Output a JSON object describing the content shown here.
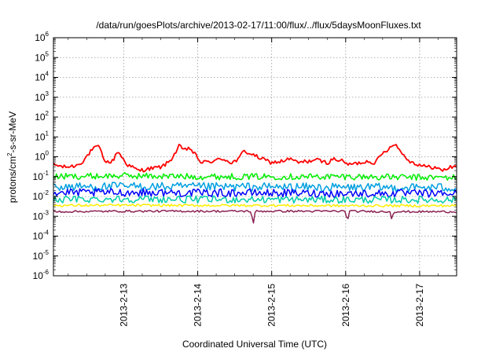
{
  "chart_data": {
    "type": "line",
    "title": "/data/run/goesPlots/archive/2013-02-17/11:00/flux/../flux/5daysMoonFluxes.txt",
    "xlabel": "Coordinated Universal Time (UTC)",
    "ylabel_parts": [
      "protons/cm",
      "2",
      "-s-sr-MeV"
    ],
    "y_scale": "log",
    "ylim": [
      1e-06,
      1000000.0
    ],
    "y_ticks": [
      {
        "base": "10",
        "exp": "-6"
      },
      {
        "base": "10",
        "exp": "-5"
      },
      {
        "base": "10",
        "exp": "-4"
      },
      {
        "base": "10",
        "exp": "-3"
      },
      {
        "base": "10",
        "exp": "-2"
      },
      {
        "base": "10",
        "exp": "-1"
      },
      {
        "base": "10",
        "exp": "0"
      },
      {
        "base": "10",
        "exp": "1"
      },
      {
        "base": "10",
        "exp": "2"
      },
      {
        "base": "10",
        "exp": "3"
      },
      {
        "base": "10",
        "exp": "4"
      },
      {
        "base": "10",
        "exp": "5"
      },
      {
        "base": "10",
        "exp": "6"
      }
    ],
    "xlim_days": [
      12.05,
      17.5
    ],
    "x_ticks": [
      {
        "day": 13,
        "label": "2013-2-13"
      },
      {
        "day": 14,
        "label": "2013-2-14"
      },
      {
        "day": 15,
        "label": "2013-2-15"
      },
      {
        "day": 16,
        "label": "2013-2-16"
      },
      {
        "day": 17,
        "label": "2013-2-17"
      }
    ],
    "grid": true,
    "series": [
      {
        "color": "#ff0000",
        "noise": 0.1,
        "points": [
          [
            12.05,
            0.4
          ],
          [
            12.2,
            0.3
          ],
          [
            12.35,
            0.35
          ],
          [
            12.45,
            0.6
          ],
          [
            12.55,
            1.8
          ],
          [
            12.62,
            3.0
          ],
          [
            12.68,
            3.0
          ],
          [
            12.72,
            0.8
          ],
          [
            12.8,
            0.5
          ],
          [
            12.85,
            0.6
          ],
          [
            12.92,
            2.0
          ],
          [
            12.97,
            1.0
          ],
          [
            13.05,
            0.4
          ],
          [
            13.2,
            0.2
          ],
          [
            13.35,
            0.25
          ],
          [
            13.5,
            0.3
          ],
          [
            13.6,
            0.5
          ],
          [
            13.68,
            1.2
          ],
          [
            13.75,
            3.5
          ],
          [
            13.82,
            2.0
          ],
          [
            13.88,
            3.0
          ],
          [
            13.95,
            1.5
          ],
          [
            14.05,
            0.5
          ],
          [
            14.2,
            0.6
          ],
          [
            14.35,
            0.8
          ],
          [
            14.45,
            0.5
          ],
          [
            14.55,
            0.7
          ],
          [
            14.62,
            2.0
          ],
          [
            14.7,
            1.5
          ],
          [
            14.8,
            1.0
          ],
          [
            14.9,
            0.7
          ],
          [
            15.0,
            0.5
          ],
          [
            15.15,
            0.6
          ],
          [
            15.25,
            0.8
          ],
          [
            15.35,
            0.5
          ],
          [
            15.5,
            0.6
          ],
          [
            15.6,
            0.7
          ],
          [
            15.75,
            0.5
          ],
          [
            15.85,
            0.8
          ],
          [
            15.95,
            0.6
          ],
          [
            16.05,
            0.4
          ],
          [
            16.2,
            0.5
          ],
          [
            16.3,
            0.6
          ],
          [
            16.4,
            0.5
          ],
          [
            16.5,
            1.5
          ],
          [
            16.58,
            2.5
          ],
          [
            16.65,
            5.0
          ],
          [
            16.72,
            2.5
          ],
          [
            16.8,
            1.0
          ],
          [
            16.9,
            0.5
          ],
          [
            17.0,
            0.4
          ],
          [
            17.1,
            0.3
          ],
          [
            17.2,
            0.3
          ],
          [
            17.3,
            0.2
          ],
          [
            17.42,
            0.3
          ],
          [
            17.5,
            0.35
          ]
        ]
      },
      {
        "color": "#00ee00",
        "noise": 0.16,
        "points": [
          [
            12.05,
            0.1
          ],
          [
            13.0,
            0.11
          ],
          [
            14.0,
            0.1
          ],
          [
            15.0,
            0.1
          ],
          [
            16.0,
            0.1
          ],
          [
            17.0,
            0.09
          ],
          [
            17.5,
            0.09
          ]
        ]
      },
      {
        "color": "#009fe0",
        "noise": 0.22,
        "points": [
          [
            12.05,
            0.03
          ],
          [
            13.0,
            0.032
          ],
          [
            14.0,
            0.03
          ],
          [
            15.0,
            0.03
          ],
          [
            16.0,
            0.028
          ],
          [
            17.0,
            0.028
          ],
          [
            17.5,
            0.028
          ]
        ]
      },
      {
        "color": "#0000ff",
        "noise": 0.2,
        "points": [
          [
            12.05,
            0.015
          ],
          [
            13.0,
            0.016
          ],
          [
            14.0,
            0.015
          ],
          [
            15.0,
            0.015
          ],
          [
            16.0,
            0.014
          ],
          [
            17.0,
            0.014
          ],
          [
            17.5,
            0.014
          ]
        ]
      },
      {
        "color": "#00ccaa",
        "noise": 0.18,
        "points": [
          [
            12.05,
            0.007
          ],
          [
            13.0,
            0.0075
          ],
          [
            14.0,
            0.007
          ],
          [
            15.0,
            0.007
          ],
          [
            16.0,
            0.0068
          ],
          [
            17.0,
            0.0068
          ],
          [
            17.5,
            0.0068
          ]
        ]
      },
      {
        "color": "#ffee00",
        "noise": 0.06,
        "points": [
          [
            12.05,
            0.0035
          ],
          [
            13.0,
            0.0036
          ],
          [
            14.0,
            0.0035
          ],
          [
            15.0,
            0.0035
          ],
          [
            16.0,
            0.0034
          ],
          [
            17.0,
            0.0034
          ],
          [
            17.5,
            0.0034
          ]
        ]
      },
      {
        "color": "#8b2252",
        "noise": 0.05,
        "points": [
          [
            12.05,
            0.0017
          ],
          [
            13.0,
            0.0018
          ],
          [
            14.0,
            0.0018
          ],
          [
            14.72,
            0.0018
          ],
          [
            14.75,
            0.0004
          ],
          [
            14.78,
            0.0018
          ],
          [
            15.0,
            0.0018
          ],
          [
            16.0,
            0.0018
          ],
          [
            16.02,
            0.0005
          ],
          [
            16.05,
            0.0018
          ],
          [
            16.6,
            0.0017
          ],
          [
            16.62,
            0.0008
          ],
          [
            16.65,
            0.0017
          ],
          [
            17.0,
            0.0017
          ],
          [
            17.5,
            0.0017
          ]
        ]
      }
    ]
  }
}
